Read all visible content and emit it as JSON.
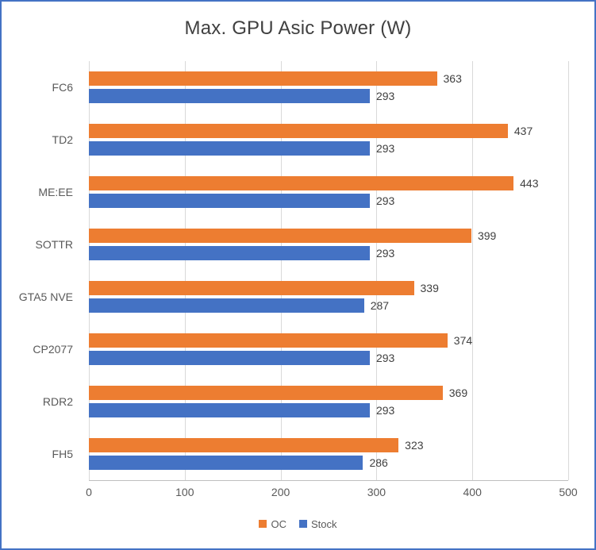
{
  "chart_data": {
    "type": "bar",
    "orientation": "horizontal",
    "title": "Max. GPU Asic Power (W)",
    "categories": [
      "FC6",
      "TD2",
      "ME:EE",
      "SOTTR",
      "GTA5 NVE",
      "CP2077",
      "RDR2",
      "FH5"
    ],
    "series": [
      {
        "name": "OC",
        "color": "#ED7D31",
        "values": [
          363,
          437,
          443,
          399,
          339,
          374,
          369,
          323
        ]
      },
      {
        "name": "Stock",
        "color": "#4472C4",
        "values": [
          293,
          293,
          293,
          293,
          287,
          293,
          293,
          286
        ]
      }
    ],
    "xlim": [
      0,
      500
    ],
    "x_ticks": [
      0,
      100,
      200,
      300,
      400,
      500
    ],
    "grid": "vertical",
    "legend_position": "bottom",
    "data_labels": true
  },
  "colors": {
    "frame_border": "#4472C4",
    "gridline": "#D9D9D9",
    "axis_line": "#BFBFBF",
    "axis_text": "#595959",
    "data_label_text": "#404040",
    "title_text": "#404040",
    "background": "#FFFFFF"
  }
}
